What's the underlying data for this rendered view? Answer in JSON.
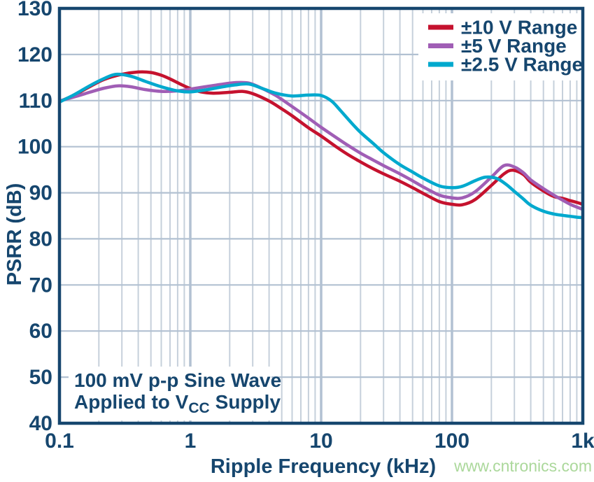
{
  "watermark": "www.cntronics.com",
  "annotation": {
    "line1": "100 mV p-p Sine Wave",
    "line2_pre": "Applied to V",
    "line2_sub": "CC",
    "line2_post": "Supply"
  },
  "colors": {
    "text_navy": "#16466E",
    "border_navy": "#16466E",
    "grid_minor": "#C6D0DB",
    "grid_major": "#B2C1D2",
    "watermark_green": "#ABD89B",
    "background": "#FFFFFF",
    "red": "#C5122E",
    "purple": "#A05EB5",
    "cyan": "#00A9CE"
  },
  "chart_data": {
    "type": "line",
    "title": "",
    "xlabel": "Ripple Frequency (kHz)",
    "ylabel": "PSRR (dB)",
    "x_scale": "log",
    "xlim": [
      0.1,
      1000
    ],
    "ylim": [
      40,
      130
    ],
    "grid": true,
    "legend_position": "top-right",
    "x_ticks": {
      "values": [
        0.1,
        1,
        10,
        100,
        1000
      ],
      "labels": [
        "0.1",
        "1",
        "10",
        "100",
        "1k"
      ]
    },
    "y_ticks": {
      "values": [
        40,
        50,
        60,
        70,
        80,
        90,
        100,
        110,
        120,
        130
      ],
      "labels": [
        "40",
        "50",
        "60",
        "70",
        "80",
        "90",
        "100",
        "110",
        "120",
        "130"
      ]
    },
    "series": [
      {
        "name": "±10 V Range",
        "color": "#C5122E",
        "points": [
          [
            0.1,
            109.8
          ],
          [
            0.13,
            111.2
          ],
          [
            0.17,
            113.0
          ],
          [
            0.22,
            114.6
          ],
          [
            0.3,
            115.7
          ],
          [
            0.4,
            116.2
          ],
          [
            0.5,
            116.1
          ],
          [
            0.6,
            115.5
          ],
          [
            0.7,
            114.7
          ],
          [
            0.85,
            113.5
          ],
          [
            1.0,
            112.6
          ],
          [
            1.2,
            111.9
          ],
          [
            1.5,
            111.6
          ],
          [
            2.0,
            111.8
          ],
          [
            2.5,
            112.0
          ],
          [
            3.0,
            111.5
          ],
          [
            4.0,
            109.9
          ],
          [
            5.0,
            108.2
          ],
          [
            6.0,
            106.7
          ],
          [
            8.0,
            104.1
          ],
          [
            10,
            102.3
          ],
          [
            13,
            100.0
          ],
          [
            16,
            98.3
          ],
          [
            20,
            96.7
          ],
          [
            25,
            95.2
          ],
          [
            30,
            94.1
          ],
          [
            40,
            92.5
          ],
          [
            50,
            91.1
          ],
          [
            60,
            89.9
          ],
          [
            80,
            88.1
          ],
          [
            100,
            87.5
          ],
          [
            120,
            87.4
          ],
          [
            150,
            88.5
          ],
          [
            200,
            91.6
          ],
          [
            250,
            94.1
          ],
          [
            290,
            94.9
          ],
          [
            350,
            94.0
          ],
          [
            400,
            92.3
          ],
          [
            500,
            90.4
          ],
          [
            600,
            89.2
          ],
          [
            700,
            88.8
          ],
          [
            800,
            88.3
          ],
          [
            900,
            87.9
          ],
          [
            1000,
            87.5
          ]
        ]
      },
      {
        "name": "±5 V Range",
        "color": "#A05EB5",
        "points": [
          [
            0.1,
            109.9
          ],
          [
            0.13,
            110.8
          ],
          [
            0.17,
            111.8
          ],
          [
            0.22,
            112.7
          ],
          [
            0.28,
            113.2
          ],
          [
            0.35,
            113.0
          ],
          [
            0.45,
            112.4
          ],
          [
            0.6,
            112.0
          ],
          [
            0.8,
            112.1
          ],
          [
            1.0,
            112.5
          ],
          [
            1.3,
            113.0
          ],
          [
            1.7,
            113.5
          ],
          [
            2.2,
            113.9
          ],
          [
            2.8,
            113.8
          ],
          [
            3.5,
            112.7
          ],
          [
            4.5,
            111.1
          ],
          [
            6.0,
            108.7
          ],
          [
            8.0,
            106.2
          ],
          [
            10,
            104.2
          ],
          [
            13,
            102.0
          ],
          [
            16,
            100.3
          ],
          [
            20,
            98.6
          ],
          [
            25,
            97.1
          ],
          [
            30,
            95.9
          ],
          [
            40,
            94.1
          ],
          [
            50,
            92.6
          ],
          [
            60,
            91.3
          ],
          [
            80,
            89.5
          ],
          [
            100,
            88.9
          ],
          [
            120,
            88.9
          ],
          [
            150,
            90.2
          ],
          [
            200,
            93.4
          ],
          [
            250,
            95.9
          ],
          [
            300,
            95.6
          ],
          [
            350,
            94.4
          ],
          [
            400,
            92.8
          ],
          [
            500,
            90.9
          ],
          [
            600,
            89.5
          ],
          [
            700,
            88.4
          ],
          [
            800,
            87.5
          ],
          [
            900,
            86.9
          ],
          [
            1000,
            86.4
          ]
        ]
      },
      {
        "name": "±2.5 V Range",
        "color": "#00A9CE",
        "points": [
          [
            0.1,
            109.7
          ],
          [
            0.13,
            111.3
          ],
          [
            0.17,
            113.2
          ],
          [
            0.22,
            114.8
          ],
          [
            0.27,
            115.7
          ],
          [
            0.35,
            115.3
          ],
          [
            0.45,
            114.2
          ],
          [
            0.6,
            113.0
          ],
          [
            0.8,
            112.1
          ],
          [
            1.0,
            111.9
          ],
          [
            1.3,
            112.3
          ],
          [
            1.7,
            112.9
          ],
          [
            2.2,
            113.4
          ],
          [
            2.8,
            113.6
          ],
          [
            3.5,
            112.7
          ],
          [
            4.5,
            111.6
          ],
          [
            6.0,
            111.0
          ],
          [
            8.0,
            111.2
          ],
          [
            10,
            111.1
          ],
          [
            12,
            109.9
          ],
          [
            14,
            107.9
          ],
          [
            17,
            105.2
          ],
          [
            20,
            103.1
          ],
          [
            25,
            100.7
          ],
          [
            30,
            98.7
          ],
          [
            40,
            96.1
          ],
          [
            50,
            94.5
          ],
          [
            60,
            93.2
          ],
          [
            80,
            91.5
          ],
          [
            100,
            91.1
          ],
          [
            120,
            91.4
          ],
          [
            150,
            92.6
          ],
          [
            180,
            93.4
          ],
          [
            220,
            93.1
          ],
          [
            260,
            91.8
          ],
          [
            300,
            90.3
          ],
          [
            350,
            88.7
          ],
          [
            400,
            87.3
          ],
          [
            500,
            86.0
          ],
          [
            600,
            85.4
          ],
          [
            700,
            85.1
          ],
          [
            800,
            84.9
          ],
          [
            900,
            84.7
          ],
          [
            1000,
            84.6
          ]
        ]
      }
    ]
  }
}
